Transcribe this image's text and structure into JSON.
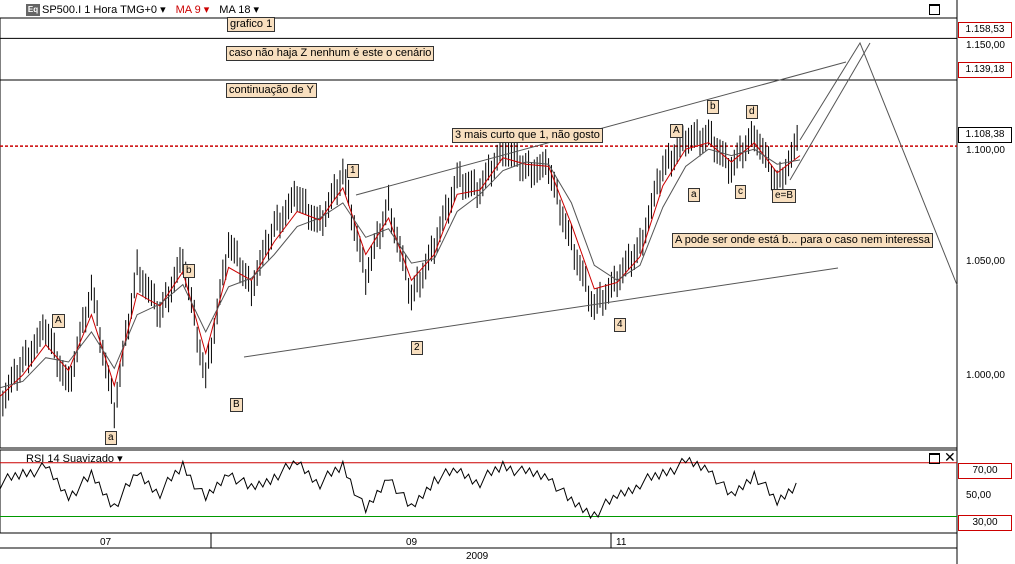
{
  "header": {
    "symbol": "SP500.I 1 Hora TMG+0",
    "ma9": "MA 9",
    "ma18": "MA 18",
    "logo": "Eq",
    "ma9_color": "#cc0000",
    "ma18_color": "#000000"
  },
  "annotations": {
    "grafico": "grafico 1",
    "cenario": "caso não haja Z nenhum é este o cenário",
    "continuacao": "continuação de Y",
    "tres_mais_curto": "3 mais curto que 1, não gosto",
    "a_pode_ser": "A pode ser onde está b... para o caso nem interessa"
  },
  "wave_labels": [
    "A",
    "b",
    "a",
    "B",
    "1",
    "2",
    "4",
    "A",
    "b",
    "a",
    "d",
    "c",
    "e=B"
  ],
  "price_boxes": [
    "1.158,53",
    "1.139,18",
    "1.108,38"
  ],
  "rsi": {
    "title": "RSI 14 Suavizado",
    "upper": "70,00",
    "middle": "50,00",
    "lower": "30,00",
    "upper_color": "#cc0000",
    "lower_color": "#009900"
  },
  "chart_data": [
    {
      "type": "line",
      "title": "SP500.I 1 Hora",
      "xlabel": "",
      "ylabel": "",
      "x_ticks": [
        "07",
        "09",
        "11"
      ],
      "year_label": "2009",
      "y_ticks": [
        "1.150,00",
        "1.100,00",
        "1.050,00",
        "1.000,00"
      ],
      "ylim": [
        968,
        1168
      ],
      "grid": false,
      "x": [
        0,
        4,
        8,
        12,
        16,
        20,
        24,
        28,
        32,
        36,
        40,
        44,
        48,
        52,
        56,
        60,
        64,
        68,
        72,
        76,
        80,
        84,
        88,
        92,
        96,
        100,
        104,
        108,
        112,
        116,
        120,
        124,
        128,
        132,
        136,
        140
      ],
      "series": [
        {
          "name": "SP500.I",
          "values": [
            988,
            1008,
            1023,
            997,
            1042,
            985,
            1052,
            1030,
            1057,
            1000,
            1063,
            1043,
            1071,
            1085,
            1072,
            1096,
            1047,
            1082,
            1038,
            1062,
            1093,
            1088,
            1108,
            1098,
            1098,
            1063,
            1033,
            1046,
            1062,
            1098,
            1112,
            1113,
            1098,
            1115,
            1090,
            1112
          ]
        },
        {
          "name": "MA 9",
          "values": [
            992,
            1002,
            1016,
            1004,
            1030,
            997,
            1040,
            1034,
            1050,
            1012,
            1052,
            1046,
            1064,
            1078,
            1074,
            1089,
            1058,
            1075,
            1046,
            1058,
            1086,
            1088,
            1103,
            1100,
            1099,
            1072,
            1042,
            1045,
            1057,
            1090,
            1107,
            1110,
            1101,
            1110,
            1096,
            1104
          ]
        },
        {
          "name": "MA 18",
          "values": [
            996,
            999,
            1010,
            1008,
            1022,
            1005,
            1030,
            1035,
            1044,
            1022,
            1043,
            1047,
            1058,
            1071,
            1075,
            1082,
            1066,
            1070,
            1054,
            1056,
            1078,
            1086,
            1097,
            1101,
            1100,
            1082,
            1053,
            1046,
            1053,
            1080,
            1099,
            1107,
            1104,
            1107,
            1100,
            1102
          ]
        }
      ],
      "reference_lines": [
        1158.53,
        1139.18,
        1108.38
      ]
    },
    {
      "type": "line",
      "title": "RSI 14 Suavizado",
      "xlabel": "",
      "ylabel": "",
      "ylim": [
        20,
        78
      ],
      "y_ticks": [
        "70,00",
        "50,00",
        "30,00"
      ],
      "x": [
        0,
        4,
        8,
        12,
        16,
        20,
        24,
        28,
        32,
        36,
        40,
        44,
        48,
        52,
        56,
        60,
        64,
        68,
        72,
        76,
        80,
        84,
        88,
        92,
        96,
        100,
        104,
        108,
        112,
        116,
        120,
        124,
        128,
        132,
        136,
        140
      ],
      "series": [
        {
          "name": "RSI 14",
          "values": [
            55,
            62,
            66,
            45,
            60,
            38,
            62,
            48,
            68,
            42,
            63,
            50,
            60,
            70,
            55,
            68,
            33,
            60,
            35,
            58,
            64,
            56,
            68,
            62,
            60,
            40,
            32,
            45,
            55,
            62,
            70,
            66,
            44,
            62,
            40,
            58
          ]
        }
      ]
    }
  ]
}
